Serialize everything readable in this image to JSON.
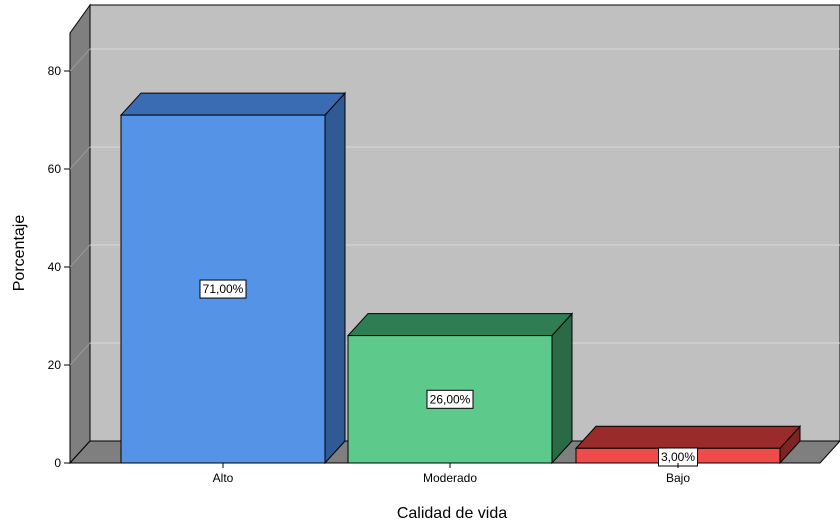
{
  "chart_data": {
    "type": "bar",
    "title": "",
    "xlabel": "Calidad de vida",
    "ylabel": "Porcentaje",
    "categories": [
      "Alto",
      "Moderado",
      "Bajo"
    ],
    "values": [
      71.0,
      26.0,
      3.0
    ],
    "data_labels": [
      "71,00%",
      "26,00%",
      "3,00%"
    ],
    "yticks": [
      0,
      20,
      40,
      60,
      80
    ],
    "ylim": [
      0,
      90
    ],
    "grid": true,
    "three_d": true,
    "colors": {
      "bar_fronts": [
        "#5593e6",
        "#5dca8b",
        "#ef4b4b"
      ],
      "bar_tops": [
        "#3a6cb4",
        "#2f7d52",
        "#9a2b2b"
      ],
      "bar_sides": [
        "#2f5a93",
        "#2a6b45",
        "#7d2323"
      ],
      "plot_background": "#c0c0c0",
      "wall": "#7f7f7f",
      "gridline": "#d9d9d9"
    }
  }
}
